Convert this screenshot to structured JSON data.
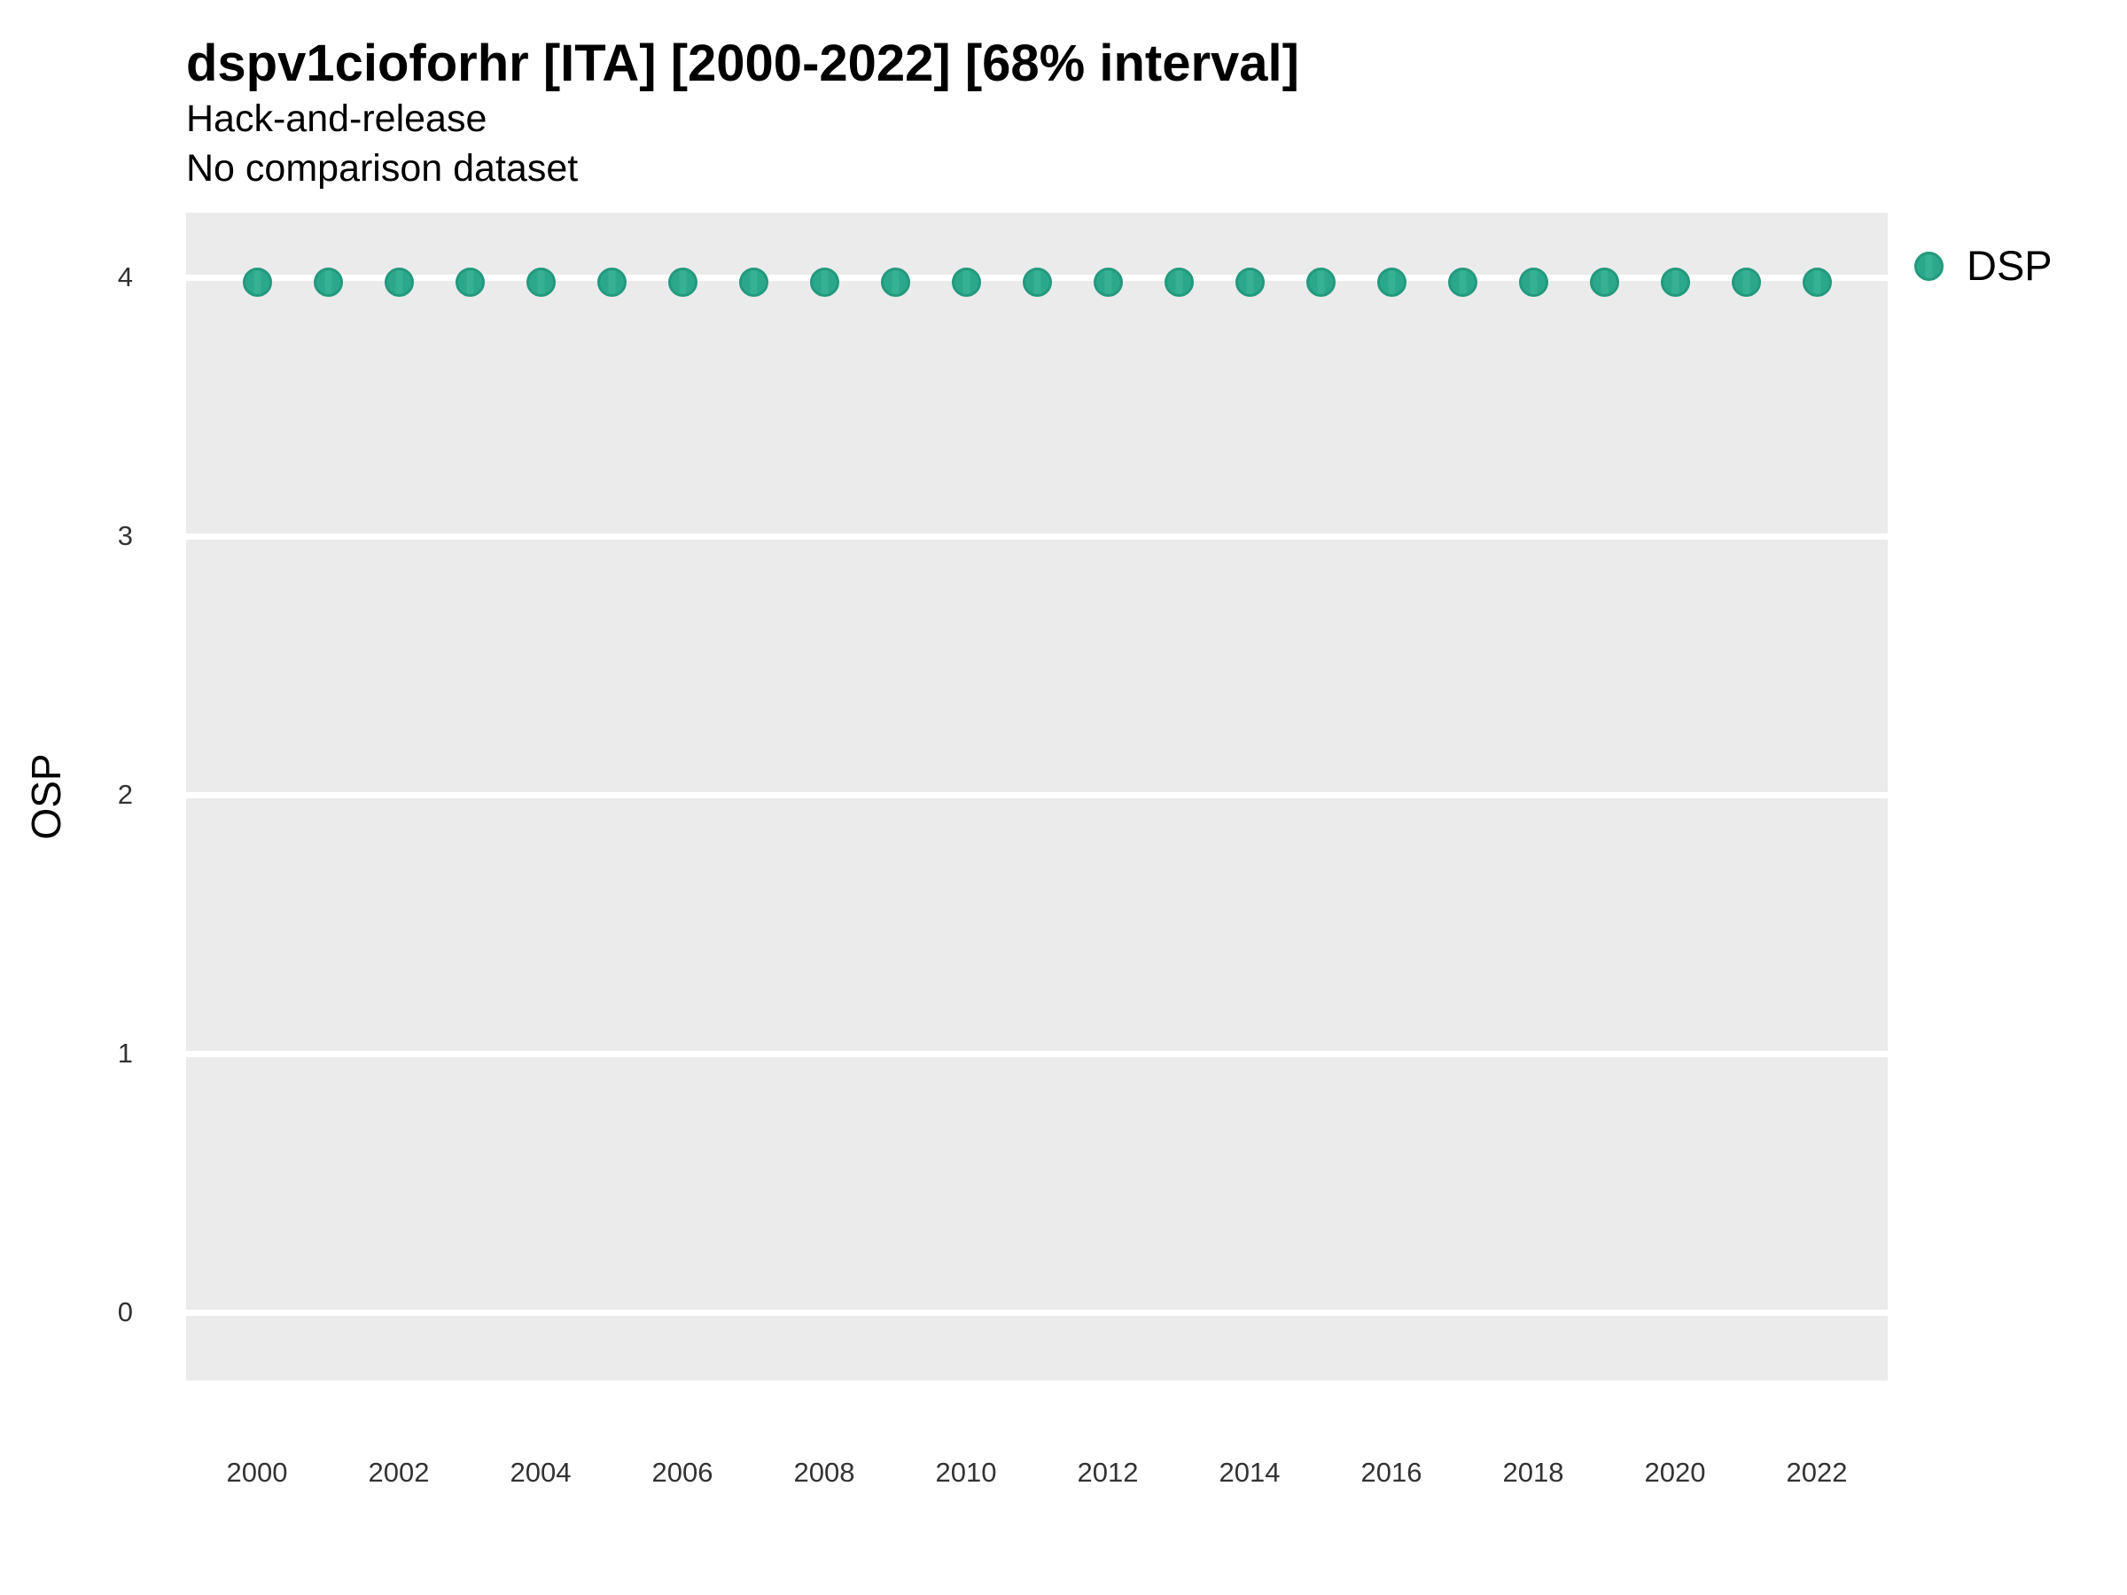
{
  "header": {
    "title": "dspv1cioforhr [ITA] [2000-2022] [68% interval]",
    "subtitle": "Hack-and-release",
    "dataset_note": "No comparison dataset"
  },
  "legend": {
    "position": "right-top",
    "items": [
      {
        "label": "DSP",
        "marker": "circle-icon",
        "color": "#2ba88b"
      }
    ]
  },
  "colors": {
    "background": "#ffffff",
    "panel_bg": "#ebebeb",
    "gridline": "#ffffff",
    "point_fill": "#2ba88b",
    "point_fill_light": "#36b193",
    "point_stroke": "#23997d",
    "axis_text": "#333333",
    "title_text": "#000000"
  },
  "chart_data": {
    "type": "scatter",
    "title": "dspv1cioforhr [ITA] [2000-2022] [68% interval]",
    "subtitle": "Hack-and-release",
    "subtitle2": "No comparison dataset",
    "xlabel": "",
    "ylabel": "OSP",
    "x": [
      2000,
      2001,
      2002,
      2003,
      2004,
      2005,
      2006,
      2007,
      2008,
      2009,
      2010,
      2011,
      2012,
      2013,
      2014,
      2015,
      2016,
      2017,
      2018,
      2019,
      2020,
      2021,
      2022
    ],
    "series": [
      {
        "name": "DSP",
        "values": [
          3.98,
          3.98,
          3.98,
          3.98,
          3.98,
          3.98,
          3.98,
          3.98,
          3.98,
          3.98,
          3.98,
          3.98,
          3.98,
          3.98,
          3.98,
          3.98,
          3.98,
          3.98,
          3.98,
          3.98,
          3.98,
          3.98,
          3.98
        ]
      }
    ],
    "ylim": [
      -0.26,
      4.25
    ],
    "xlim": [
      1999,
      2023
    ],
    "yticks": [
      "4",
      "3",
      "2",
      "1",
      "0"
    ],
    "ytick_values": [
      4,
      3,
      2,
      1,
      0
    ],
    "xticks": [
      "2000",
      "2002",
      "2004",
      "2006",
      "2008",
      "2010",
      "2012",
      "2014",
      "2016",
      "2018",
      "2020",
      "2022"
    ],
    "xtick_values": [
      2000,
      2002,
      2004,
      2006,
      2008,
      2010,
      2012,
      2014,
      2016,
      2018,
      2020,
      2022
    ],
    "grid": "horizontal-major-only",
    "legend_position": "right-top",
    "interval": "68%"
  }
}
